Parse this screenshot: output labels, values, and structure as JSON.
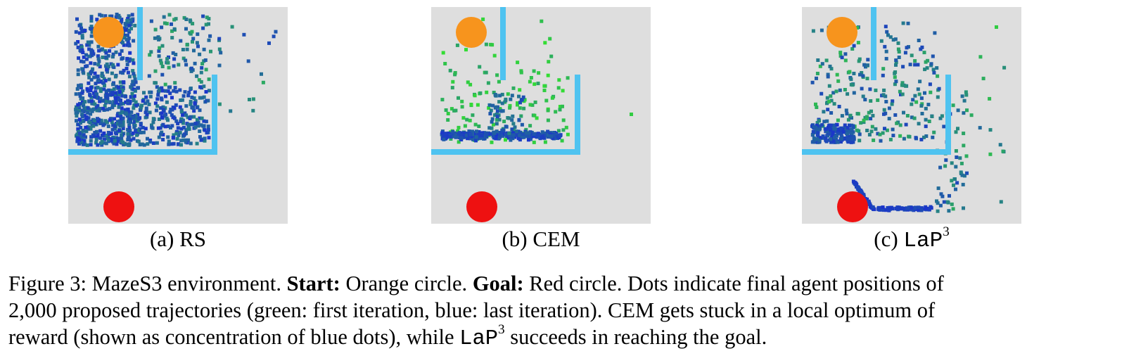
{
  "panels": [
    {
      "label": "(a) RS"
    },
    {
      "label": "(b) CEM"
    },
    {
      "label_prefix": "(c)",
      "label_method": "LaP",
      "label_sup": "3"
    }
  ],
  "colors": {
    "start": "#f7941d",
    "goal": "#ee1111",
    "wall": "#4fc3f0",
    "background": "#dedede",
    "first_iteration": "#33dd33",
    "last_iteration": "#1a33cc"
  },
  "caption": {
    "figure_label": "Figure 3:",
    "line1_a": " MazeS3 environment. ",
    "start_label": "Start:",
    "line1_b": " Orange circle. ",
    "goal_label": "Goal:",
    "line1_c": " Red circle. Dots indicate final agent positions of",
    "line2": "2,000 proposed trajectories (green: first iteration, blue: last iteration). CEM gets stuck in a local optimum of",
    "line3_a": "reward (shown as concentration of blue dots), while ",
    "line3_method": "LaP",
    "line3_sup": "3",
    "line3_b": " succeeds in reaching the goal."
  }
}
